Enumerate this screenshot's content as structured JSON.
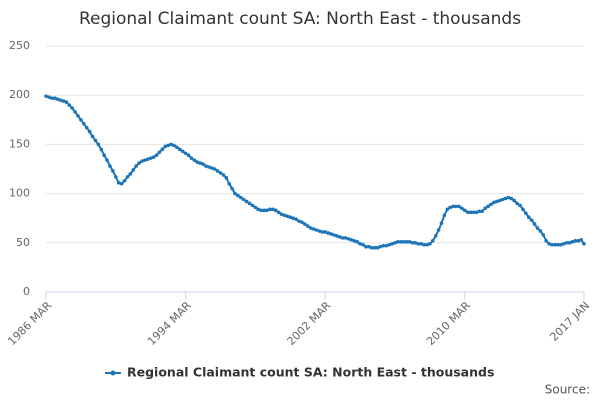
{
  "chart_data": {
    "type": "line",
    "title": "Regional Claimant count SA: North East - thousands",
    "source": "Source:",
    "categories": [
      "1986 MAR",
      null,
      null,
      null,
      null,
      null,
      null,
      null,
      null,
      null,
      null,
      null,
      null,
      null,
      null,
      null,
      null,
      null,
      null,
      null,
      null,
      null,
      null,
      null,
      null,
      null,
      null,
      null,
      null,
      null,
      null,
      null,
      null,
      null,
      null,
      null,
      null,
      null,
      null,
      null,
      null,
      null,
      null,
      null,
      null,
      null,
      null,
      null,
      "1994 MAR",
      null,
      null,
      null,
      null,
      null,
      null,
      null,
      null,
      null,
      null,
      null,
      null,
      null,
      null,
      null,
      null,
      null,
      null,
      null,
      null,
      null,
      null,
      null,
      null,
      null,
      null,
      null,
      null,
      null,
      null,
      null,
      null,
      null,
      null,
      null,
      null,
      null,
      null,
      null,
      null,
      null,
      null,
      null,
      null,
      null,
      null,
      null,
      "2002 MAR",
      null,
      null,
      null,
      null,
      null,
      null,
      null,
      null,
      null,
      null,
      null,
      null,
      null,
      null,
      null,
      null,
      null,
      null,
      null,
      null,
      null,
      null,
      null,
      null,
      null,
      null,
      null,
      null,
      null,
      null,
      null,
      null,
      null,
      null,
      null,
      null,
      null,
      null,
      null,
      null,
      null,
      null,
      null,
      null,
      null,
      null,
      null,
      "2010 MAR",
      null,
      null,
      null,
      null,
      null,
      null,
      null,
      null,
      null,
      null,
      null,
      null,
      null,
      null,
      null,
      null,
      null,
      null,
      null,
      null,
      null,
      null,
      null,
      null,
      null,
      null,
      null,
      null,
      null,
      null,
      null,
      null,
      null,
      null,
      null,
      null,
      null,
      null,
      null,
      null,
      "2017 JAN"
    ],
    "series": [
      {
        "name": "Regional Claimant count SA: North East - thousands",
        "color": "#1d75b8",
        "values": [
          199,
          198,
          197,
          197,
          196,
          195,
          194,
          193,
          190,
          187,
          183,
          179,
          175,
          171,
          167,
          163,
          158,
          154,
          150,
          145,
          139,
          134,
          128,
          123,
          117,
          111,
          110,
          113,
          117,
          120,
          124,
          128,
          131,
          133,
          134,
          135,
          136,
          137,
          139,
          142,
          145,
          148,
          149,
          150,
          149,
          147,
          145,
          143,
          141,
          139,
          136,
          134,
          132,
          131,
          130,
          128,
          127,
          126,
          125,
          123,
          121,
          119,
          116,
          110,
          105,
          100,
          98,
          96,
          94,
          92,
          90,
          88,
          86,
          84,
          83,
          83,
          83,
          84,
          84,
          83,
          81,
          79,
          78,
          77,
          76,
          75,
          74,
          72,
          71,
          69,
          67,
          65,
          64,
          63,
          62,
          61,
          61,
          60,
          59,
          58,
          57,
          56,
          55,
          55,
          54,
          53,
          52,
          51,
          49,
          48,
          46,
          46,
          45,
          45,
          45,
          46,
          47,
          47,
          48,
          49,
          50,
          51,
          51,
          51,
          51,
          51,
          50,
          50,
          49,
          49,
          48,
          48,
          49,
          52,
          57,
          63,
          70,
          78,
          84,
          86,
          87,
          87,
          87,
          85,
          83,
          81,
          81,
          81,
          81,
          82,
          82,
          85,
          87,
          89,
          91,
          92,
          93,
          94,
          95,
          96,
          95,
          93,
          90,
          88,
          84,
          80,
          76,
          73,
          69,
          65,
          62,
          58,
          52,
          49,
          48,
          48,
          48,
          48,
          49,
          50,
          50,
          51,
          52,
          52,
          53,
          49
        ]
      }
    ],
    "ylim": [
      0,
      250
    ],
    "yticks": [
      0,
      50,
      100,
      150,
      200,
      250
    ],
    "grid": true
  }
}
